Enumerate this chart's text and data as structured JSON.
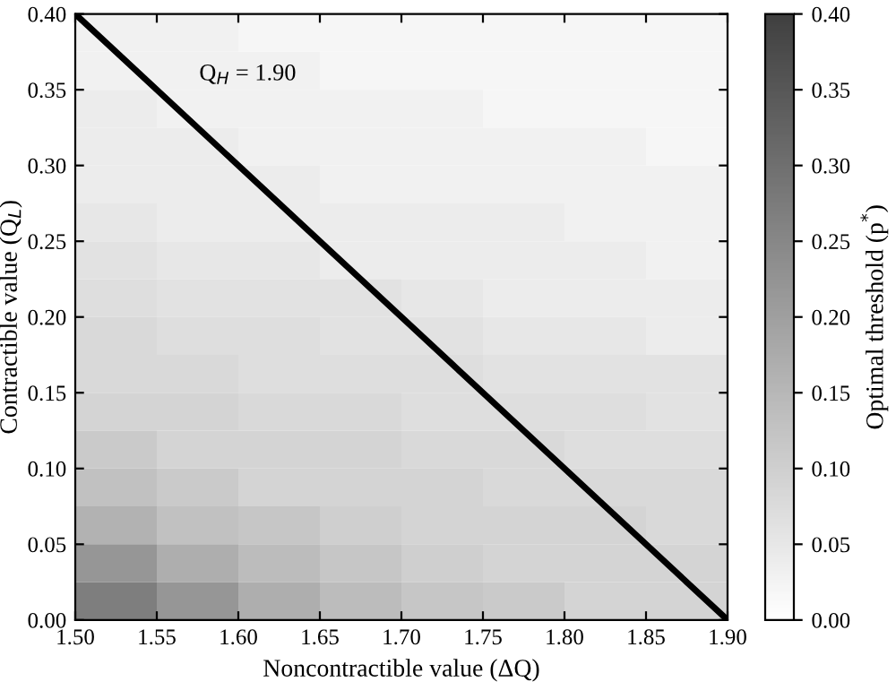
{
  "chart_data": {
    "type": "heatmap",
    "xlabel": "Noncontractible value (ΔQ)",
    "ylabel": "Contractible value (Q$_{L}$)",
    "clabel": "Optimal threshold (p$^{*}$)",
    "x": [
      1.525,
      1.575,
      1.625,
      1.675,
      1.725,
      1.775,
      1.825,
      1.875
    ],
    "y": [
      0.3875,
      0.3625,
      0.3375,
      0.3125,
      0.2875,
      0.2625,
      0.2375,
      0.2125,
      0.1875,
      0.1625,
      0.1375,
      0.1125,
      0.0875,
      0.0625,
      0.0375,
      0.0125
    ],
    "cells": [
      [
        0.03,
        0.03,
        0.02,
        0.02,
        0.02,
        0.02,
        0.02,
        0.02
      ],
      [
        0.03,
        0.03,
        0.03,
        0.02,
        0.02,
        0.02,
        0.02,
        0.02
      ],
      [
        0.04,
        0.03,
        0.03,
        0.03,
        0.03,
        0.02,
        0.02,
        0.02
      ],
      [
        0.04,
        0.04,
        0.03,
        0.03,
        0.03,
        0.03,
        0.03,
        0.02
      ],
      [
        0.04,
        0.04,
        0.04,
        0.03,
        0.03,
        0.03,
        0.03,
        0.03
      ],
      [
        0.05,
        0.04,
        0.04,
        0.04,
        0.04,
        0.04,
        0.03,
        0.03
      ],
      [
        0.06,
        0.05,
        0.05,
        0.04,
        0.04,
        0.04,
        0.04,
        0.03
      ],
      [
        0.07,
        0.06,
        0.06,
        0.06,
        0.05,
        0.04,
        0.04,
        0.04
      ],
      [
        0.08,
        0.07,
        0.07,
        0.06,
        0.06,
        0.05,
        0.05,
        0.04
      ],
      [
        0.08,
        0.08,
        0.07,
        0.07,
        0.07,
        0.06,
        0.06,
        0.06
      ],
      [
        0.09,
        0.09,
        0.08,
        0.08,
        0.07,
        0.07,
        0.07,
        0.06
      ],
      [
        0.11,
        0.09,
        0.09,
        0.09,
        0.08,
        0.08,
        0.07,
        0.07
      ],
      [
        0.13,
        0.11,
        0.09,
        0.09,
        0.09,
        0.08,
        0.08,
        0.08
      ],
      [
        0.16,
        0.13,
        0.12,
        0.1,
        0.09,
        0.09,
        0.09,
        0.08
      ],
      [
        0.22,
        0.17,
        0.14,
        0.12,
        0.1,
        0.09,
        0.09,
        0.09
      ],
      [
        0.27,
        0.22,
        0.17,
        0.14,
        0.12,
        0.11,
        0.09,
        0.09
      ]
    ],
    "clim": [
      0.0,
      0.4
    ],
    "cticks": [
      {
        "value": 0.0,
        "label": "0.00"
      },
      {
        "value": 0.05,
        "label": "0.05"
      },
      {
        "value": 0.1,
        "label": "0.10"
      },
      {
        "value": 0.15,
        "label": "0.15"
      },
      {
        "value": 0.2,
        "label": "0.20"
      },
      {
        "value": 0.25,
        "label": "0.25"
      },
      {
        "value": 0.3,
        "label": "0.30"
      },
      {
        "value": 0.35,
        "label": "0.35"
      },
      {
        "value": 0.4,
        "label": "0.40"
      }
    ],
    "xlim": [
      1.5,
      1.9
    ],
    "xticks": [
      {
        "value": 1.5,
        "label": "1.50"
      },
      {
        "value": 1.55,
        "label": "1.55"
      },
      {
        "value": 1.6,
        "label": "1.60"
      },
      {
        "value": 1.65,
        "label": "1.65"
      },
      {
        "value": 1.7,
        "label": "1.70"
      },
      {
        "value": 1.75,
        "label": "1.75"
      },
      {
        "value": 1.8,
        "label": "1.80"
      },
      {
        "value": 1.85,
        "label": "1.85"
      },
      {
        "value": 1.9,
        "label": "1.90"
      }
    ],
    "ylim": [
      0.0,
      0.4
    ],
    "yticks": [
      {
        "value": 0.0,
        "label": "0.00"
      },
      {
        "value": 0.05,
        "label": "0.05"
      },
      {
        "value": 0.1,
        "label": "0.10"
      },
      {
        "value": 0.15,
        "label": "0.15"
      },
      {
        "value": 0.2,
        "label": "0.20"
      },
      {
        "value": 0.25,
        "label": "0.25"
      },
      {
        "value": 0.3,
        "label": "0.30"
      },
      {
        "value": 0.35,
        "label": "0.35"
      },
      {
        "value": 0.4,
        "label": "0.40"
      }
    ],
    "series": [
      {
        "type": "line",
        "x": [
          1.5,
          1.9
        ],
        "values": [
          0.4,
          0.0
        ],
        "color": "#000000"
      }
    ],
    "annotations": [
      "Q$_{H}$ = 1.90"
    ],
    "grid": false,
    "legend": false
  }
}
